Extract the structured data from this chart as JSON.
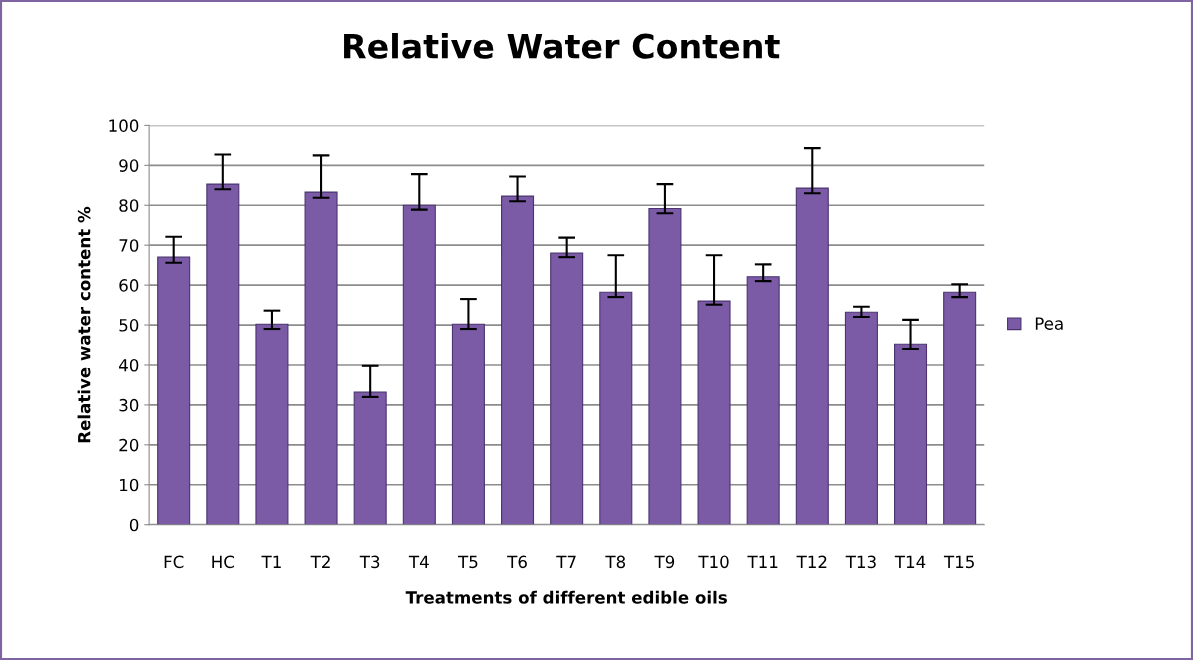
{
  "chart_data": {
    "type": "bar",
    "title": "Relative Water Content",
    "xlabel": "Treatments of different edible oils",
    "ylabel": "Relative water content %",
    "categories": [
      "FC",
      "HC",
      "T1",
      "T2",
      "T3",
      "T4",
      "T5",
      "T6",
      "T7",
      "T8",
      "T9",
      "T10",
      "T11",
      "T12",
      "T13",
      "T14",
      "T15"
    ],
    "series": [
      {
        "name": "Pea",
        "color": "#7b5aa6",
        "values": [
          67.0,
          85.3,
          50.2,
          83.3,
          33.2,
          80.0,
          50.2,
          82.3,
          68.0,
          58.2,
          79.2,
          56.0,
          62.1,
          84.3,
          53.2,
          45.2,
          58.2
        ],
        "errors": [
          [
            65.6,
            72.1
          ],
          [
            84.0,
            92.7
          ],
          [
            49.0,
            53.6
          ],
          [
            81.9,
            92.5
          ],
          [
            32.0,
            39.8
          ],
          [
            78.9,
            87.8
          ],
          [
            49.0,
            56.5
          ],
          [
            81.0,
            87.2
          ],
          [
            67.0,
            71.9
          ],
          [
            57.0,
            67.5
          ],
          [
            78.0,
            85.3
          ],
          [
            55.1,
            67.5
          ],
          [
            61.0,
            65.2
          ],
          [
            83.0,
            94.3
          ],
          [
            52.0,
            54.6
          ],
          [
            44.0,
            51.3
          ],
          [
            57.0,
            60.2
          ]
        ]
      }
    ],
    "ylim": [
      0,
      100
    ],
    "yticks": [
      0,
      10,
      20,
      30,
      40,
      50,
      60,
      70,
      80,
      90,
      100
    ],
    "grid": "y",
    "legend": "right"
  }
}
